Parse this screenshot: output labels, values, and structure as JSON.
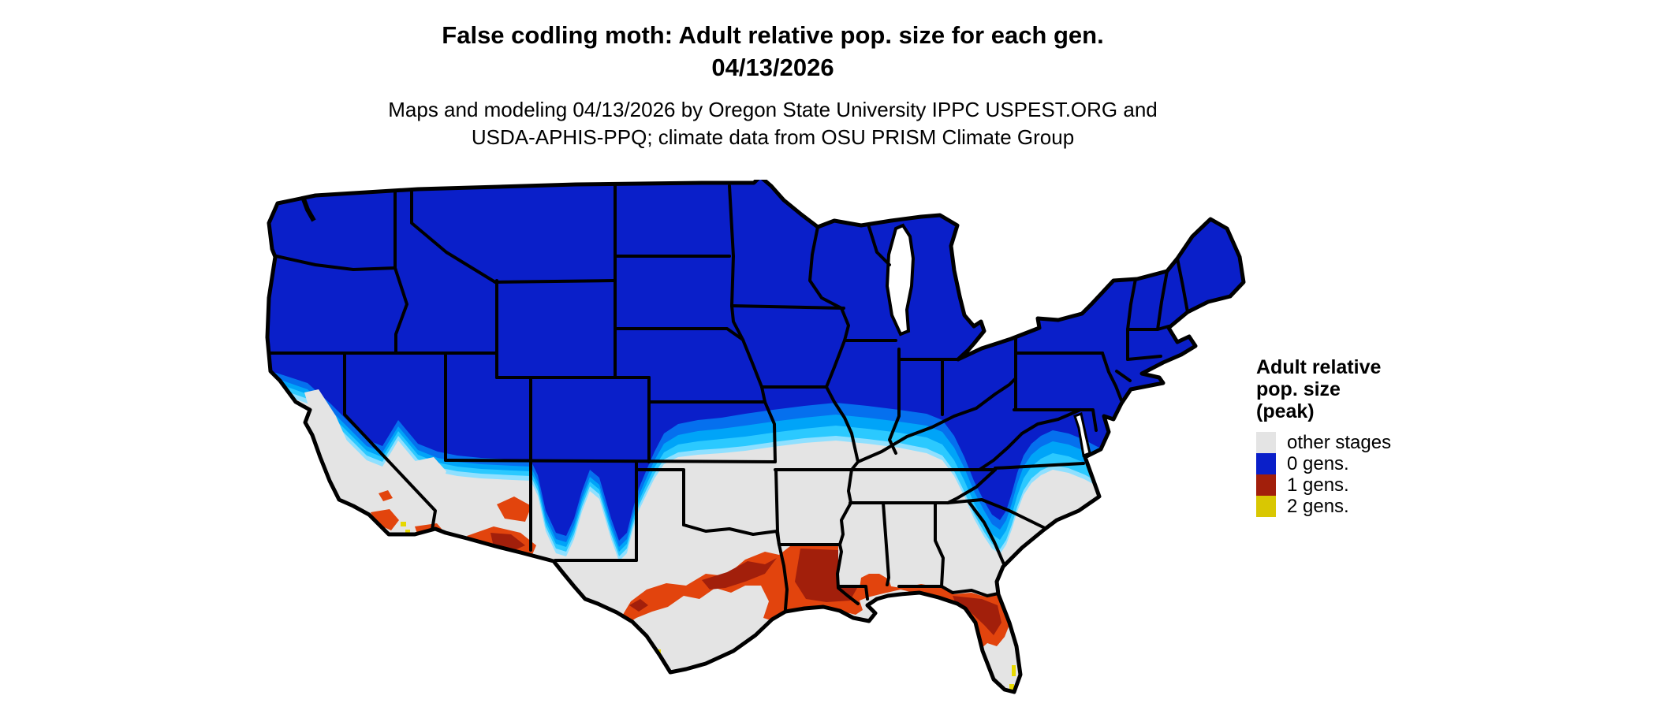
{
  "header": {
    "title_line1": "False codling moth: Adult relative pop. size for each gen.",
    "title_line2": "04/13/2026",
    "subtitle_line1": "Maps and modeling 04/13/2026 by Oregon State University IPPC USPEST.ORG and",
    "subtitle_line2": "USDA-APHIS-PPQ; climate data from OSU PRISM Climate Group"
  },
  "legend": {
    "title_lines": [
      "Adult relative",
      "pop. size",
      "(peak)"
    ],
    "items": [
      {
        "label": "other stages",
        "color": "#E4E4E4"
      },
      {
        "label": "0 gens.",
        "color": "#0A1FC9"
      },
      {
        "label": "1 gens.",
        "color": "#A21F0B"
      },
      {
        "label": "2 gens.",
        "color": "#D9C702"
      }
    ]
  },
  "map": {
    "region": "Contiguous United States",
    "palette": {
      "other_stages": "#E4E4E4",
      "gens0_dark_blue": "#0A1FC9",
      "gens0_gradient_bands": [
        "#0345DC",
        "#0570EE",
        "#00A4F8",
        "#2BC9FF",
        "#8FE0FF"
      ],
      "gens1_orange": "#E2440D",
      "gens1_dark_red": "#A21F0B",
      "gens2_yellow": "#E6D800",
      "state_border": "#000000",
      "water": "#FFFFFF"
    },
    "pattern_summary": "Northern states 0 gens (dark blue) grading through lighter blues/cyan to other stages (gray) across the mid-latitudes; 1 gen (orange/red) across central Texas, Louisiana, Gulf Coast and northern Florida plus southern Arizona/California valleys; 2 gens (yellow) specks at far south Texas, Florida Keys and SE California."
  }
}
